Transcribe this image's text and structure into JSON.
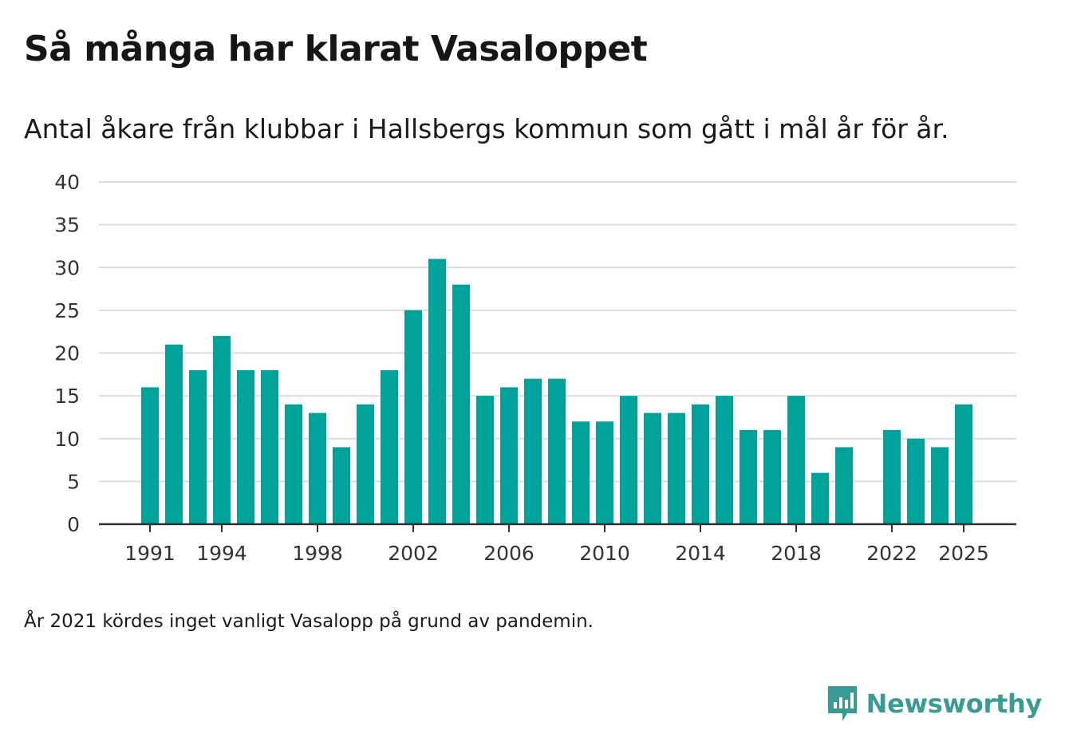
{
  "title": "Så många har klarat Vasaloppet",
  "subtitle": "Antal åkare från klubbar i Hallsbergs kommun som gått i mål år för år.",
  "footnote": "År 2021 kördes inget vanligt Vasalopp på grund av pandemin.",
  "brand": {
    "name": "Newsworthy",
    "icon": "newsworthy-logo-icon"
  },
  "colors": {
    "bar": "#00a39a",
    "grid": "#dcdcdc",
    "axis": "#333333",
    "brand": "#3a9a94"
  },
  "chart_data": {
    "type": "bar",
    "title": "Så många har klarat Vasaloppet",
    "xlabel": "",
    "ylabel": "",
    "ylim": [
      0,
      40
    ],
    "yticks": [
      0,
      5,
      10,
      15,
      20,
      25,
      30,
      35,
      40
    ],
    "xticks": [
      1991,
      1994,
      1998,
      2002,
      2006,
      2010,
      2014,
      2018,
      2022,
      2025
    ],
    "grid": true,
    "legend": "none",
    "categories": [
      1991,
      1992,
      1993,
      1994,
      1995,
      1996,
      1997,
      1998,
      1999,
      2000,
      2001,
      2002,
      2003,
      2004,
      2005,
      2006,
      2007,
      2008,
      2009,
      2010,
      2011,
      2012,
      2013,
      2014,
      2015,
      2016,
      2017,
      2018,
      2019,
      2020,
      2021,
      2022,
      2023,
      2024,
      2025
    ],
    "values": [
      16,
      21,
      18,
      22,
      18,
      18,
      14,
      13,
      9,
      14,
      18,
      25,
      31,
      28,
      15,
      16,
      17,
      17,
      12,
      12,
      15,
      13,
      13,
      14,
      15,
      11,
      11,
      15,
      6,
      9,
      null,
      11,
      10,
      9,
      14
    ]
  }
}
